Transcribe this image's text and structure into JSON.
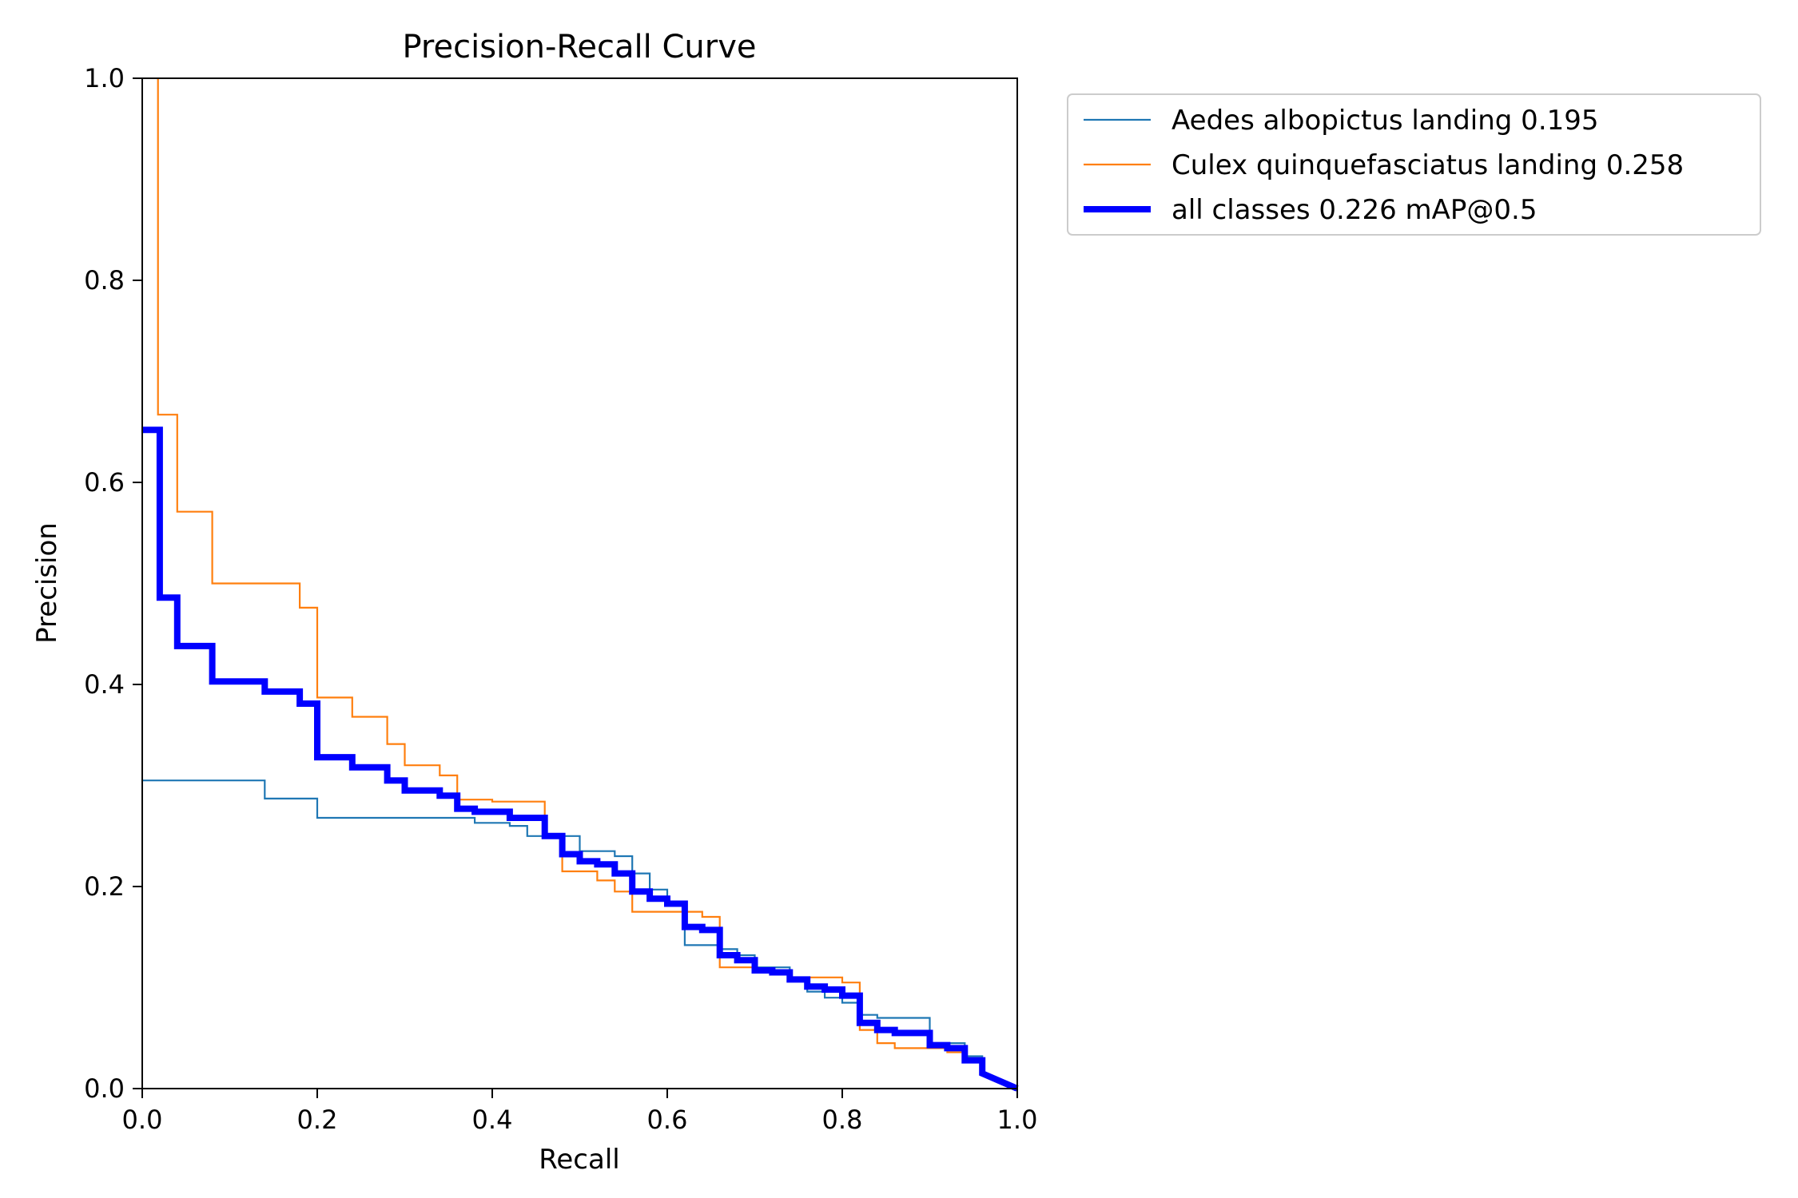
{
  "chart_data": {
    "type": "line",
    "title": "Precision-Recall Curve",
    "xlabel": "Recall",
    "ylabel": "Precision",
    "xlim": [
      0,
      1
    ],
    "ylim": [
      0,
      1
    ],
    "xticks": [
      "0.0",
      "0.2",
      "0.4",
      "0.6",
      "0.8",
      "1.0"
    ],
    "yticks": [
      "0.0",
      "0.2",
      "0.4",
      "0.6",
      "0.8",
      "1.0"
    ],
    "grid": false,
    "legend_position": "outside-top-right",
    "series": [
      {
        "name": "Aedes  albopictus landing 0.195",
        "color": "#1f77b4",
        "line_style": "thin",
        "points": [
          [
            0.0,
            0.305
          ],
          [
            0.14,
            0.305
          ],
          [
            0.14,
            0.287
          ],
          [
            0.2,
            0.287
          ],
          [
            0.2,
            0.268
          ],
          [
            0.38,
            0.268
          ],
          [
            0.38,
            0.263
          ],
          [
            0.42,
            0.263
          ],
          [
            0.42,
            0.26
          ],
          [
            0.44,
            0.26
          ],
          [
            0.44,
            0.25
          ],
          [
            0.5,
            0.25
          ],
          [
            0.5,
            0.235
          ],
          [
            0.54,
            0.235
          ],
          [
            0.54,
            0.23
          ],
          [
            0.56,
            0.23
          ],
          [
            0.56,
            0.213
          ],
          [
            0.58,
            0.213
          ],
          [
            0.58,
            0.197
          ],
          [
            0.6,
            0.197
          ],
          [
            0.6,
            0.185
          ],
          [
            0.62,
            0.185
          ],
          [
            0.62,
            0.142
          ],
          [
            0.66,
            0.142
          ],
          [
            0.66,
            0.138
          ],
          [
            0.68,
            0.138
          ],
          [
            0.68,
            0.132
          ],
          [
            0.7,
            0.132
          ],
          [
            0.7,
            0.12
          ],
          [
            0.74,
            0.12
          ],
          [
            0.74,
            0.107
          ],
          [
            0.76,
            0.107
          ],
          [
            0.76,
            0.096
          ],
          [
            0.78,
            0.096
          ],
          [
            0.78,
            0.09
          ],
          [
            0.8,
            0.09
          ],
          [
            0.8,
            0.085
          ],
          [
            0.82,
            0.085
          ],
          [
            0.82,
            0.073
          ],
          [
            0.84,
            0.073
          ],
          [
            0.84,
            0.07
          ],
          [
            0.9,
            0.07
          ],
          [
            0.9,
            0.045
          ],
          [
            0.94,
            0.045
          ],
          [
            0.94,
            0.032
          ],
          [
            0.96,
            0.032
          ],
          [
            0.96,
            0.015
          ],
          [
            1.0,
            0.0
          ]
        ]
      },
      {
        "name": "Culex quinquefasciatus landing 0.258",
        "color": "#ff7f0e",
        "line_style": "thin",
        "points": [
          [
            0.018,
            1.0
          ],
          [
            0.018,
            0.667
          ],
          [
            0.04,
            0.667
          ],
          [
            0.04,
            0.571
          ],
          [
            0.08,
            0.571
          ],
          [
            0.08,
            0.5
          ],
          [
            0.18,
            0.5
          ],
          [
            0.18,
            0.476
          ],
          [
            0.2,
            0.476
          ],
          [
            0.2,
            0.387
          ],
          [
            0.24,
            0.387
          ],
          [
            0.24,
            0.368
          ],
          [
            0.28,
            0.368
          ],
          [
            0.28,
            0.341
          ],
          [
            0.3,
            0.341
          ],
          [
            0.3,
            0.32
          ],
          [
            0.34,
            0.32
          ],
          [
            0.34,
            0.31
          ],
          [
            0.36,
            0.31
          ],
          [
            0.36,
            0.286
          ],
          [
            0.4,
            0.286
          ],
          [
            0.4,
            0.284
          ],
          [
            0.46,
            0.284
          ],
          [
            0.46,
            0.25
          ],
          [
            0.48,
            0.25
          ],
          [
            0.48,
            0.215
          ],
          [
            0.52,
            0.215
          ],
          [
            0.52,
            0.206
          ],
          [
            0.54,
            0.206
          ],
          [
            0.54,
            0.195
          ],
          [
            0.56,
            0.195
          ],
          [
            0.56,
            0.175
          ],
          [
            0.62,
            0.175
          ],
          [
            0.62,
            0.175
          ],
          [
            0.64,
            0.175
          ],
          [
            0.64,
            0.17
          ],
          [
            0.66,
            0.17
          ],
          [
            0.66,
            0.12
          ],
          [
            0.7,
            0.12
          ],
          [
            0.7,
            0.115
          ],
          [
            0.74,
            0.115
          ],
          [
            0.74,
            0.11
          ],
          [
            0.8,
            0.11
          ],
          [
            0.8,
            0.105
          ],
          [
            0.82,
            0.105
          ],
          [
            0.82,
            0.058
          ],
          [
            0.84,
            0.058
          ],
          [
            0.84,
            0.045
          ],
          [
            0.86,
            0.045
          ],
          [
            0.86,
            0.04
          ],
          [
            0.92,
            0.04
          ],
          [
            0.92,
            0.036
          ],
          [
            0.94,
            0.036
          ],
          [
            0.94,
            0.03
          ],
          [
            0.96,
            0.03
          ],
          [
            0.96,
            0.015
          ],
          [
            1.0,
            0.0
          ]
        ]
      },
      {
        "name": "all classes 0.226 mAP@0.5",
        "color": "#0000ff",
        "line_style": "thick",
        "points": [
          [
            0.0,
            0.652
          ],
          [
            0.02,
            0.652
          ],
          [
            0.02,
            0.486
          ],
          [
            0.04,
            0.486
          ],
          [
            0.04,
            0.438
          ],
          [
            0.08,
            0.438
          ],
          [
            0.08,
            0.403
          ],
          [
            0.14,
            0.403
          ],
          [
            0.14,
            0.393
          ],
          [
            0.18,
            0.393
          ],
          [
            0.18,
            0.381
          ],
          [
            0.2,
            0.381
          ],
          [
            0.2,
            0.328
          ],
          [
            0.24,
            0.328
          ],
          [
            0.24,
            0.318
          ],
          [
            0.28,
            0.318
          ],
          [
            0.28,
            0.305
          ],
          [
            0.3,
            0.305
          ],
          [
            0.3,
            0.295
          ],
          [
            0.34,
            0.295
          ],
          [
            0.34,
            0.29
          ],
          [
            0.36,
            0.29
          ],
          [
            0.36,
            0.277
          ],
          [
            0.38,
            0.277
          ],
          [
            0.38,
            0.274
          ],
          [
            0.42,
            0.274
          ],
          [
            0.42,
            0.268
          ],
          [
            0.46,
            0.268
          ],
          [
            0.46,
            0.25
          ],
          [
            0.48,
            0.25
          ],
          [
            0.48,
            0.232
          ],
          [
            0.5,
            0.232
          ],
          [
            0.5,
            0.225
          ],
          [
            0.52,
            0.225
          ],
          [
            0.52,
            0.222
          ],
          [
            0.54,
            0.222
          ],
          [
            0.54,
            0.213
          ],
          [
            0.56,
            0.213
          ],
          [
            0.56,
            0.195
          ],
          [
            0.58,
            0.195
          ],
          [
            0.58,
            0.188
          ],
          [
            0.6,
            0.188
          ],
          [
            0.6,
            0.183
          ],
          [
            0.62,
            0.183
          ],
          [
            0.62,
            0.16
          ],
          [
            0.64,
            0.16
          ],
          [
            0.64,
            0.157
          ],
          [
            0.66,
            0.157
          ],
          [
            0.66,
            0.132
          ],
          [
            0.68,
            0.132
          ],
          [
            0.68,
            0.127
          ],
          [
            0.7,
            0.127
          ],
          [
            0.7,
            0.117
          ],
          [
            0.72,
            0.117
          ],
          [
            0.72,
            0.115
          ],
          [
            0.74,
            0.115
          ],
          [
            0.74,
            0.108
          ],
          [
            0.76,
            0.108
          ],
          [
            0.76,
            0.101
          ],
          [
            0.78,
            0.101
          ],
          [
            0.78,
            0.098
          ],
          [
            0.8,
            0.098
          ],
          [
            0.8,
            0.092
          ],
          [
            0.82,
            0.092
          ],
          [
            0.82,
            0.065
          ],
          [
            0.84,
            0.065
          ],
          [
            0.84,
            0.058
          ],
          [
            0.86,
            0.058
          ],
          [
            0.86,
            0.055
          ],
          [
            0.9,
            0.055
          ],
          [
            0.9,
            0.043
          ],
          [
            0.92,
            0.043
          ],
          [
            0.92,
            0.04
          ],
          [
            0.94,
            0.04
          ],
          [
            0.94,
            0.028
          ],
          [
            0.96,
            0.028
          ],
          [
            0.96,
            0.015
          ],
          [
            1.0,
            0.0
          ]
        ]
      }
    ]
  }
}
